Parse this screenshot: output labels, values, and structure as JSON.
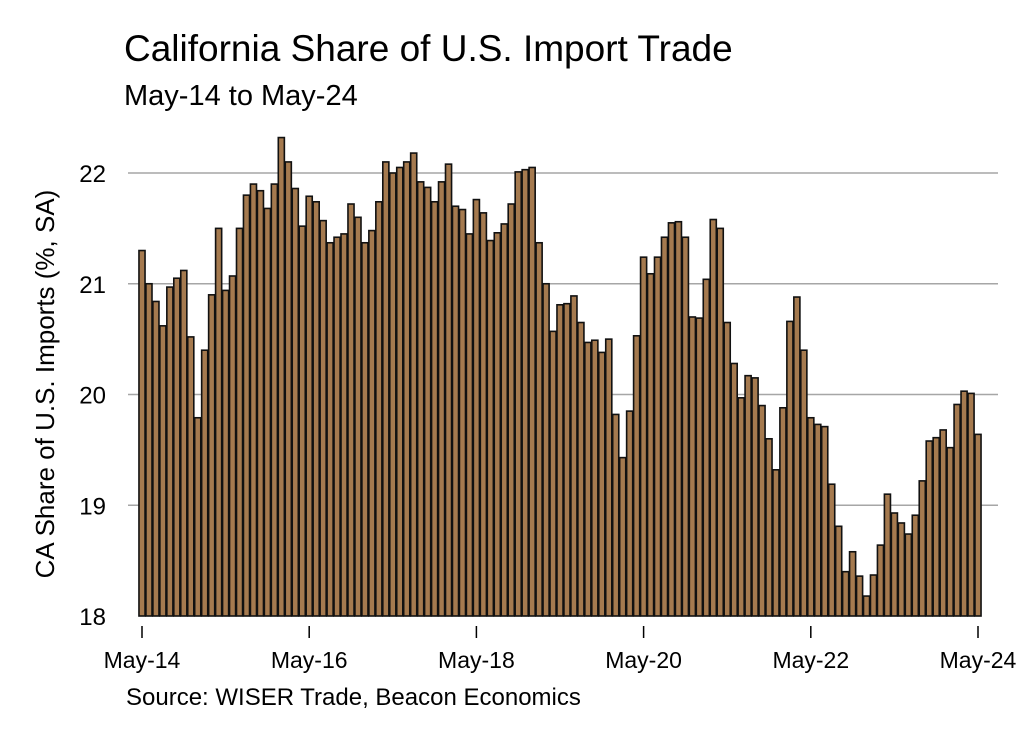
{
  "chart_data": {
    "type": "bar",
    "title": "California Share of U.S. Import Trade",
    "subtitle": "May-14 to May-24",
    "ylabel": "CA Share of U.S. Imports (%, SA)",
    "xlabel": "",
    "source": "Source: WISER Trade, Beacon Economics",
    "ylim": [
      18,
      22.4
    ],
    "yticks": [
      18,
      19,
      20,
      21,
      22
    ],
    "xticks": [
      "May-14",
      "May-16",
      "May-18",
      "May-20",
      "May-22",
      "May-24"
    ],
    "grid": true,
    "bar_color": "#a57a4f",
    "edge_color": "#111111",
    "grid_color": "#a6a6a6",
    "frequency": "monthly",
    "first_period": "May-14",
    "last_period": "May-24",
    "values": [
      21.3,
      21.0,
      20.84,
      20.62,
      20.97,
      21.05,
      21.12,
      20.52,
      19.79,
      20.4,
      20.9,
      21.5,
      20.94,
      21.07,
      21.5,
      21.8,
      21.9,
      21.84,
      21.68,
      21.9,
      22.32,
      22.1,
      21.86,
      21.52,
      21.79,
      21.74,
      21.57,
      21.37,
      21.42,
      21.45,
      21.72,
      21.6,
      21.37,
      21.48,
      21.74,
      22.1,
      22.0,
      22.05,
      22.1,
      22.18,
      21.92,
      21.87,
      21.74,
      21.92,
      22.08,
      21.7,
      21.67,
      21.45,
      21.76,
      21.64,
      21.39,
      21.46,
      21.54,
      21.72,
      22.01,
      22.03,
      22.05,
      21.37,
      21.0,
      20.57,
      20.81,
      20.82,
      20.89,
      20.65,
      20.47,
      20.49,
      20.38,
      20.5,
      19.82,
      19.43,
      19.85,
      20.53,
      21.24,
      21.09,
      21.24,
      21.42,
      21.55,
      21.56,
      21.42,
      20.7,
      20.69,
      21.04,
      21.58,
      21.5,
      20.65,
      20.28,
      19.97,
      20.17,
      20.15,
      19.9,
      19.6,
      19.32,
      19.88,
      20.66,
      20.88,
      20.4,
      19.79,
      19.73,
      19.71,
      19.19,
      18.81,
      18.4,
      18.58,
      18.36,
      18.18,
      18.37,
      18.64,
      19.1,
      18.93,
      18.84,
      18.74,
      18.91,
      19.22,
      19.58,
      19.61,
      19.68,
      19.52,
      19.91,
      20.03,
      20.01,
      19.64
    ]
  }
}
